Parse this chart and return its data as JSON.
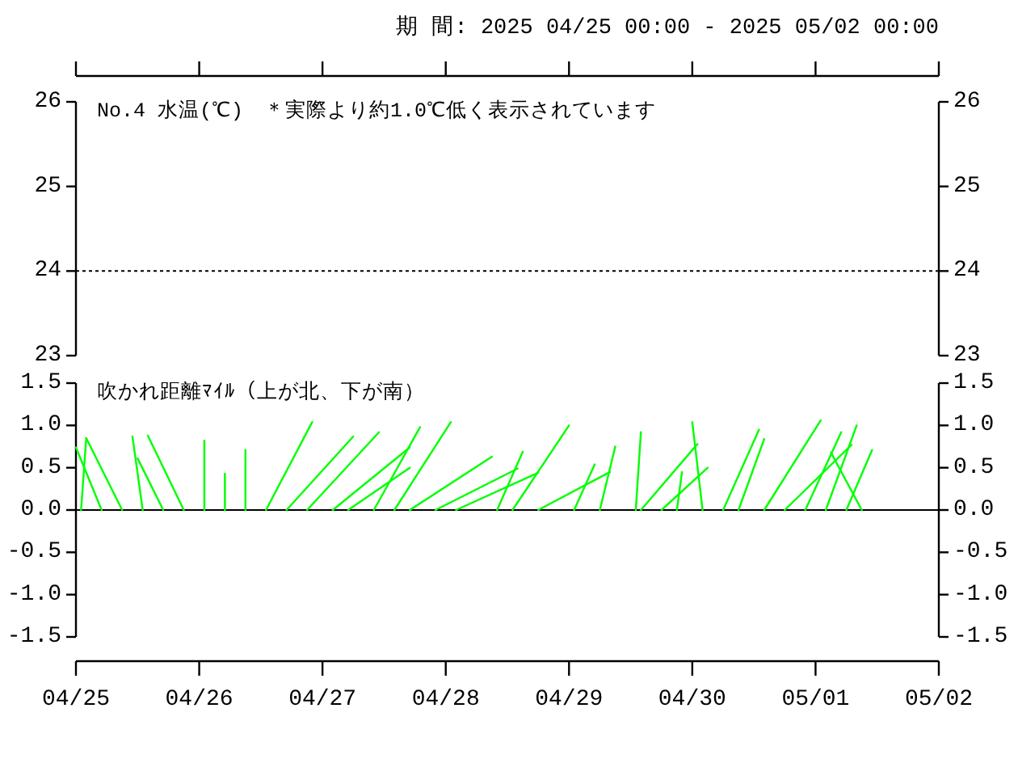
{
  "chart_data": [
    {
      "type": "line",
      "title": "No.4 水温(℃)　＊実際より約1.0℃低く表示されています",
      "annotations": [
        "期 間: 2025 04/25 00:00 - 2025 05/02 00:00"
      ],
      "xlim": [
        "2025-04-25",
        "2025-05-02"
      ],
      "xticks": [
        "2025-04-25",
        "2025-04-26",
        "2025-04-27",
        "2025-04-28",
        "2025-04-29",
        "2025-04-30",
        "2025-05-01",
        "2025-05-02"
      ],
      "tick_labels": "y",
      "ylim": [
        23,
        26
      ],
      "yticks": [
        23,
        24,
        25,
        26
      ],
      "y2lim": [
        23,
        26
      ],
      "y2ticks": [
        23,
        24,
        25,
        26
      ],
      "series": [
        {
          "color": "#000000",
          "line_style": "dotted",
          "x": [
            "2025-04-25",
            "2025-05-02"
          ],
          "values": [
            24,
            24
          ]
        }
      ]
    },
    {
      "type": "line",
      "title": "吹かれ距離ﾏｲﾙ（上が北、下が南）",
      "xlim": [
        "2025-04-25",
        "2025-05-02"
      ],
      "xticks": [
        {
          "value": "2025-04-25",
          "label": "04/25"
        },
        {
          "value": "2025-04-26",
          "label": "04/26"
        },
        {
          "value": "2025-04-27",
          "label": "04/27"
        },
        {
          "value": "2025-04-28",
          "label": "04/28"
        },
        {
          "value": "2025-04-29",
          "label": "04/29"
        },
        {
          "value": "2025-04-30",
          "label": "04/30"
        },
        {
          "value": "2025-05-01",
          "label": "05/01"
        },
        {
          "value": "2025-05-02",
          "label": "05/02"
        }
      ],
      "ylim": [
        -1.5,
        1.5
      ],
      "yticks": [
        -1.5,
        {
          "value": -1,
          "label": "-1.0"
        },
        -0.5,
        {
          "value": 0,
          "label": "0.0"
        },
        0.5,
        {
          "value": 1,
          "label": "1.0"
        },
        1.5
      ],
      "y2lim": [
        -1.5,
        1.5
      ],
      "y2ticks": [
        -1.5,
        {
          "value": -1,
          "label": "-1.0"
        },
        -0.5,
        {
          "value": 0,
          "label": "0.0"
        },
        0.5,
        {
          "value": 1,
          "label": "1.0"
        },
        1.5
      ],
      "ref_lines": [
        {
          "axis": "y",
          "value": 0,
          "line_style": "solid"
        }
      ],
      "series": [
        {
          "color": "#00ff00",
          "x": [
            "2025-04-25T05:00",
            "2025-04-25T00:00"
          ],
          "values": [
            0,
            0.74
          ]
        },
        {
          "color": "#00ff00",
          "x": [
            "2025-04-25T01:00",
            "2025-04-25T02:00"
          ],
          "values": [
            0,
            0.85
          ]
        },
        {
          "color": "#00ff00",
          "x": [
            "2025-04-25T09:00",
            "2025-04-25T02:00"
          ],
          "values": [
            0,
            0.85
          ]
        },
        {
          "color": "#00ff00",
          "x": [
            "2025-04-25T13:00",
            "2025-04-25T11:00"
          ],
          "values": [
            0,
            0.87
          ]
        },
        {
          "color": "#00ff00",
          "x": [
            "2025-04-25T17:00",
            "2025-04-25T12:00"
          ],
          "values": [
            0,
            0.61
          ]
        },
        {
          "color": "#00ff00",
          "x": [
            "2025-04-25T21:00",
            "2025-04-25T14:00"
          ],
          "values": [
            0,
            0.88
          ]
        },
        {
          "color": "#00ff00",
          "x": [
            "2025-04-26T01:00",
            "2025-04-26T01:00"
          ],
          "values": [
            0,
            0.82
          ]
        },
        {
          "color": "#00ff00",
          "x": [
            "2025-04-26T05:00",
            "2025-04-26T05:00"
          ],
          "values": [
            0,
            0.43
          ]
        },
        {
          "color": "#00ff00",
          "x": [
            "2025-04-26T09:00",
            "2025-04-26T09:00"
          ],
          "values": [
            0,
            0.71
          ]
        },
        {
          "color": "#00ff00",
          "x": [
            "2025-04-26T13:00",
            "2025-04-26T22:00"
          ],
          "values": [
            0,
            1.04
          ]
        },
        {
          "color": "#00ff00",
          "x": [
            "2025-04-26T17:00",
            "2025-04-27T06:00"
          ],
          "values": [
            0,
            0.87
          ]
        },
        {
          "color": "#00ff00",
          "x": [
            "2025-04-26T21:00",
            "2025-04-27T11:00"
          ],
          "values": [
            0,
            0.92
          ]
        },
        {
          "color": "#00ff00",
          "x": [
            "2025-04-27T02:00",
            "2025-04-27T17:00"
          ],
          "values": [
            0,
            0.74
          ]
        },
        {
          "color": "#00ff00",
          "x": [
            "2025-04-27T05:00",
            "2025-04-27T17:00"
          ],
          "values": [
            0,
            0.5
          ]
        },
        {
          "color": "#00ff00",
          "x": [
            "2025-04-27T10:00",
            "2025-04-27T19:00"
          ],
          "values": [
            0,
            0.98
          ]
        },
        {
          "color": "#00ff00",
          "x": [
            "2025-04-27T14:00",
            "2025-04-28T01:00"
          ],
          "values": [
            0,
            1.04
          ]
        },
        {
          "color": "#00ff00",
          "x": [
            "2025-04-27T17:00",
            "2025-04-28T09:00"
          ],
          "values": [
            0,
            0.63
          ]
        },
        {
          "color": "#00ff00",
          "x": [
            "2025-04-27T22:00",
            "2025-04-28T14:00"
          ],
          "values": [
            0,
            0.49
          ]
        },
        {
          "color": "#00ff00",
          "x": [
            "2025-04-28T02:00",
            "2025-04-28T18:00"
          ],
          "values": [
            0,
            0.44
          ]
        },
        {
          "color": "#00ff00",
          "x": [
            "2025-04-28T10:00",
            "2025-04-28T15:00"
          ],
          "values": [
            0,
            0.69
          ]
        },
        {
          "color": "#00ff00",
          "x": [
            "2025-04-28T13:00",
            "2025-04-29T00:00"
          ],
          "values": [
            0,
            1.0
          ]
        },
        {
          "color": "#00ff00",
          "x": [
            "2025-04-28T18:00",
            "2025-04-29T08:00"
          ],
          "values": [
            0,
            0.45
          ]
        },
        {
          "color": "#00ff00",
          "x": [
            "2025-04-29T01:00",
            "2025-04-29T05:00"
          ],
          "values": [
            0,
            0.54
          ]
        },
        {
          "color": "#00ff00",
          "x": [
            "2025-04-29T06:00",
            "2025-04-29T09:00"
          ],
          "values": [
            0,
            0.75
          ]
        },
        {
          "color": "#00ff00",
          "x": [
            "2025-04-29T13:00",
            "2025-04-29T14:00"
          ],
          "values": [
            0,
            0.92
          ]
        },
        {
          "color": "#00ff00",
          "x": [
            "2025-04-29T14:00",
            "2025-04-30T01:00"
          ],
          "values": [
            0,
            0.78
          ]
        },
        {
          "color": "#00ff00",
          "x": [
            "2025-04-29T18:00",
            "2025-04-30T03:00"
          ],
          "values": [
            0,
            0.5
          ]
        },
        {
          "color": "#00ff00",
          "x": [
            "2025-04-29T21:00",
            "2025-04-29T22:00"
          ],
          "values": [
            0,
            0.45
          ]
        },
        {
          "color": "#00ff00",
          "x": [
            "2025-04-30T02:00",
            "2025-04-30T00:00"
          ],
          "values": [
            0,
            1.04
          ]
        },
        {
          "color": "#00ff00",
          "x": [
            "2025-04-30T06:00",
            "2025-04-30T13:00"
          ],
          "values": [
            0,
            0.95
          ]
        },
        {
          "color": "#00ff00",
          "x": [
            "2025-04-30T09:00",
            "2025-04-30T14:00"
          ],
          "values": [
            0,
            0.84
          ]
        },
        {
          "color": "#00ff00",
          "x": [
            "2025-04-30T14:00",
            "2025-05-01T01:00"
          ],
          "values": [
            0,
            1.06
          ]
        },
        {
          "color": "#00ff00",
          "x": [
            "2025-04-30T18:00",
            "2025-05-01T07:00"
          ],
          "values": [
            0,
            0.77
          ]
        },
        {
          "color": "#00ff00",
          "x": [
            "2025-04-30T22:00",
            "2025-05-01T05:00"
          ],
          "values": [
            0,
            0.92
          ]
        },
        {
          "color": "#00ff00",
          "x": [
            "2025-05-01T02:00",
            "2025-05-01T08:00"
          ],
          "values": [
            0,
            1.0
          ]
        },
        {
          "color": "#00ff00",
          "x": [
            "2025-05-01T06:00",
            "2025-05-01T11:00"
          ],
          "values": [
            0,
            0.71
          ]
        },
        {
          "color": "#00ff00",
          "x": [
            "2025-05-01T09:00",
            "2025-05-01T03:00"
          ],
          "values": [
            0,
            0.68
          ]
        }
      ]
    }
  ]
}
